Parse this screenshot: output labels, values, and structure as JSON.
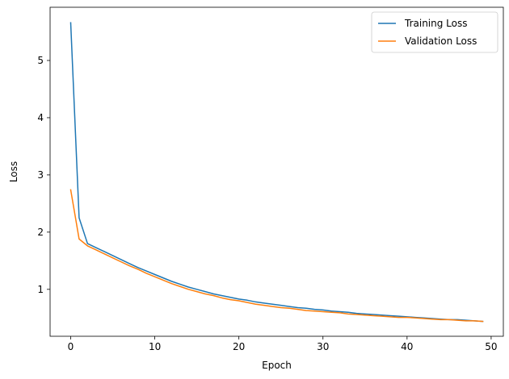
{
  "chart_data": {
    "type": "line",
    "xlabel": "Epoch",
    "ylabel": "Loss",
    "xlim": [
      -2.45,
      51.45
    ],
    "ylim": [
      0.18,
      5.93
    ],
    "xticks": [
      0,
      10,
      20,
      30,
      40,
      50
    ],
    "yticks": [
      1,
      2,
      3,
      4,
      5
    ],
    "grid": false,
    "legend_position": "top-right",
    "x": [
      0,
      1,
      2,
      3,
      4,
      5,
      6,
      7,
      8,
      9,
      10,
      11,
      12,
      13,
      14,
      15,
      16,
      17,
      18,
      19,
      20,
      21,
      22,
      23,
      24,
      25,
      26,
      27,
      28,
      29,
      30,
      31,
      32,
      33,
      34,
      35,
      36,
      37,
      38,
      39,
      40,
      41,
      42,
      43,
      44,
      45,
      46,
      47,
      48,
      49
    ],
    "series": [
      {
        "name": "Training Loss",
        "color": "#1f77b4",
        "values": [
          5.66,
          2.25,
          1.8,
          1.73,
          1.66,
          1.59,
          1.52,
          1.45,
          1.38,
          1.32,
          1.26,
          1.2,
          1.14,
          1.09,
          1.04,
          1.0,
          0.96,
          0.92,
          0.89,
          0.86,
          0.83,
          0.81,
          0.78,
          0.76,
          0.74,
          0.72,
          0.7,
          0.68,
          0.67,
          0.65,
          0.64,
          0.62,
          0.61,
          0.6,
          0.58,
          0.57,
          0.56,
          0.55,
          0.54,
          0.53,
          0.52,
          0.51,
          0.5,
          0.49,
          0.48,
          0.47,
          0.47,
          0.46,
          0.45,
          0.44
        ]
      },
      {
        "name": "Validation Loss",
        "color": "#ff7f0e",
        "values": [
          2.74,
          1.88,
          1.76,
          1.69,
          1.62,
          1.55,
          1.48,
          1.41,
          1.35,
          1.28,
          1.22,
          1.16,
          1.1,
          1.05,
          1.0,
          0.96,
          0.92,
          0.89,
          0.85,
          0.82,
          0.8,
          0.77,
          0.74,
          0.72,
          0.7,
          0.68,
          0.67,
          0.65,
          0.63,
          0.62,
          0.61,
          0.6,
          0.59,
          0.57,
          0.56,
          0.55,
          0.54,
          0.53,
          0.52,
          0.51,
          0.51,
          0.5,
          0.49,
          0.48,
          0.47,
          0.47,
          0.46,
          0.45,
          0.45,
          0.44
        ]
      }
    ]
  }
}
